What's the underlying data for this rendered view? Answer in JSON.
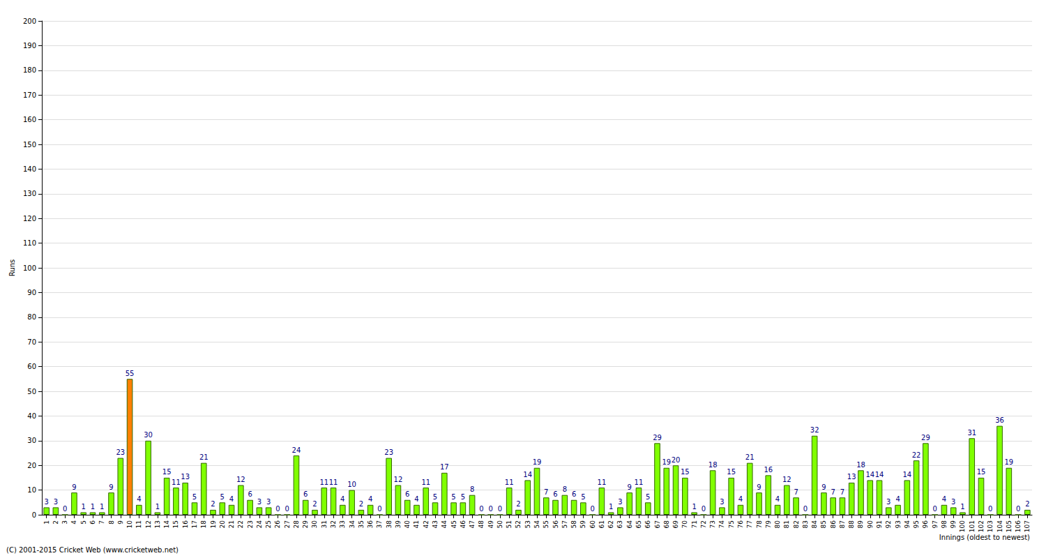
{
  "chart_data": {
    "type": "bar",
    "x_label": "Innings (oldest to newest)",
    "y_label": "Runs",
    "annotations": [
      "(C) 2001-2015 Cricket Web (www.cricketweb.net)"
    ],
    "categories": [
      "1",
      "2",
      "3",
      "4",
      "5",
      "6",
      "7",
      "8",
      "9",
      "10",
      "11",
      "12",
      "13",
      "14",
      "15",
      "16",
      "17",
      "18",
      "19",
      "20",
      "21",
      "22",
      "23",
      "24",
      "25",
      "26",
      "27",
      "28",
      "29",
      "30",
      "31",
      "32",
      "33",
      "34",
      "35",
      "36",
      "37",
      "38",
      "39",
      "40",
      "41",
      "42",
      "43",
      "44",
      "45",
      "46",
      "47",
      "48",
      "49",
      "50",
      "51",
      "52",
      "53",
      "54",
      "55",
      "56",
      "57",
      "58",
      "59",
      "60",
      "61",
      "62",
      "63",
      "64",
      "65",
      "66",
      "67",
      "68",
      "69",
      "70",
      "71",
      "72",
      "73",
      "74",
      "75",
      "76",
      "77",
      "78",
      "79",
      "80",
      "81",
      "82",
      "83",
      "84",
      "85",
      "86",
      "87",
      "88",
      "89",
      "90",
      "91",
      "92",
      "93",
      "94",
      "95",
      "96",
      "97",
      "98",
      "99",
      "100",
      "101",
      "102",
      "103",
      "104",
      "105",
      "106",
      "107"
    ],
    "values": [
      3,
      3,
      0,
      9,
      1,
      1,
      1,
      9,
      23,
      55,
      4,
      30,
      1,
      15,
      11,
      13,
      5,
      21,
      2,
      5,
      4,
      12,
      6,
      3,
      3,
      0,
      0,
      24,
      6,
      2,
      11,
      11,
      4,
      10,
      2,
      4,
      0,
      23,
      12,
      6,
      4,
      11,
      5,
      17,
      5,
      5,
      8,
      0,
      0,
      0,
      11,
      2,
      14,
      19,
      7,
      6,
      8,
      6,
      5,
      0,
      11,
      1,
      3,
      9,
      11,
      5,
      29,
      19,
      20,
      15,
      1,
      0,
      18,
      3,
      15,
      4,
      21,
      9,
      16,
      4,
      12,
      7,
      0,
      32,
      9,
      7,
      7,
      13,
      18,
      14,
      14,
      3,
      4,
      14,
      22,
      29,
      0,
      4,
      3,
      1,
      31,
      15,
      0,
      36,
      19,
      0,
      2
    ],
    "colors": [
      "#80ff00",
      "#80ff00",
      "#80ff00",
      "#80ff00",
      "#80ff00",
      "#80ff00",
      "#80ff00",
      "#80ff00",
      "#80ff00",
      "#ff8000",
      "#80ff00",
      "#80ff00",
      "#80ff00",
      "#80ff00",
      "#80ff00",
      "#80ff00",
      "#80ff00",
      "#80ff00",
      "#80ff00",
      "#80ff00",
      "#80ff00",
      "#80ff00",
      "#80ff00",
      "#80ff00",
      "#80ff00",
      "#80ff00",
      "#80ff00",
      "#80ff00",
      "#80ff00",
      "#80ff00",
      "#80ff00",
      "#80ff00",
      "#80ff00",
      "#80ff00",
      "#80ff00",
      "#80ff00",
      "#80ff00",
      "#80ff00",
      "#80ff00",
      "#80ff00",
      "#80ff00",
      "#80ff00",
      "#80ff00",
      "#80ff00",
      "#80ff00",
      "#80ff00",
      "#80ff00",
      "#80ff00",
      "#80ff00",
      "#80ff00",
      "#80ff00",
      "#80ff00",
      "#80ff00",
      "#80ff00",
      "#80ff00",
      "#80ff00",
      "#80ff00",
      "#80ff00",
      "#80ff00",
      "#80ff00",
      "#80ff00",
      "#80ff00",
      "#80ff00",
      "#80ff00",
      "#80ff00",
      "#80ff00",
      "#80ff00",
      "#80ff00",
      "#80ff00",
      "#80ff00",
      "#80ff00",
      "#80ff00",
      "#80ff00",
      "#80ff00",
      "#80ff00",
      "#80ff00",
      "#80ff00",
      "#80ff00",
      "#80ff00",
      "#80ff00",
      "#80ff00",
      "#80ff00",
      "#80ff00",
      "#80ff00",
      "#80ff00",
      "#80ff00",
      "#80ff00",
      "#80ff00",
      "#80ff00",
      "#80ff00",
      "#80ff00",
      "#80ff00",
      "#80ff00",
      "#80ff00",
      "#80ff00",
      "#80ff00",
      "#80ff00",
      "#80ff00",
      "#80ff00",
      "#80ff00",
      "#80ff00",
      "#80ff00",
      "#80ff00",
      "#80ff00",
      "#80ff00",
      "#80ff00",
      "#80ff00"
    ],
    "ylim": [
      0,
      200
    ],
    "yticks": [
      0,
      10,
      20,
      30,
      40,
      50,
      60,
      70,
      80,
      90,
      100,
      110,
      120,
      130,
      140,
      150,
      160,
      170,
      180,
      190,
      200
    ],
    "grid": true,
    "data_labels": true
  }
}
